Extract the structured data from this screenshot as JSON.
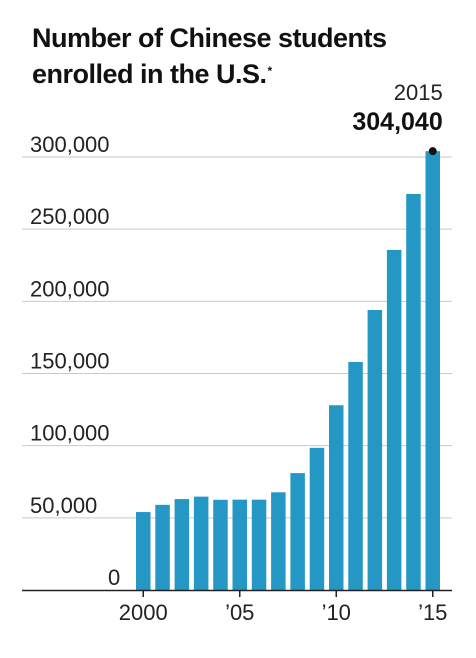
{
  "title": {
    "line1": "Number of Chinese students",
    "line2": "enrolled in the U.S.",
    "footnote_mark": "*"
  },
  "colors": {
    "bar": "#2597c4",
    "grid": "#c9c9c9",
    "axis": "#222222"
  },
  "annotation": {
    "year": "2015",
    "value": "304,040"
  },
  "chart_data": {
    "type": "bar",
    "title": "Number of Chinese students enrolled in the U.S.*",
    "xlabel": "",
    "ylabel": "",
    "categories": [
      "2000",
      "2001",
      "2002",
      "2003",
      "2004",
      "2005",
      "2006",
      "2007",
      "2008",
      "2009",
      "2010",
      "2011",
      "2012",
      "2013",
      "2014",
      "2015"
    ],
    "values": [
      54000,
      59000,
      63000,
      64700,
      62500,
      62600,
      62600,
      67700,
      81000,
      98500,
      128000,
      158000,
      194000,
      235600,
      274400,
      304040
    ],
    "ylim": [
      0,
      300000
    ],
    "yticks": [
      0,
      50000,
      100000,
      150000,
      200000,
      250000,
      300000
    ],
    "ytick_labels": [
      "0",
      "50,000",
      "100,000",
      "150,000",
      "200,000",
      "250,000",
      "300,000"
    ],
    "xtick_labels": [
      {
        "index": 0,
        "label": "2000"
      },
      {
        "index": 5,
        "label": "’05"
      },
      {
        "index": 10,
        "label": "’10"
      },
      {
        "index": 15,
        "label": "’15"
      }
    ],
    "grid": true,
    "legend": "none"
  }
}
